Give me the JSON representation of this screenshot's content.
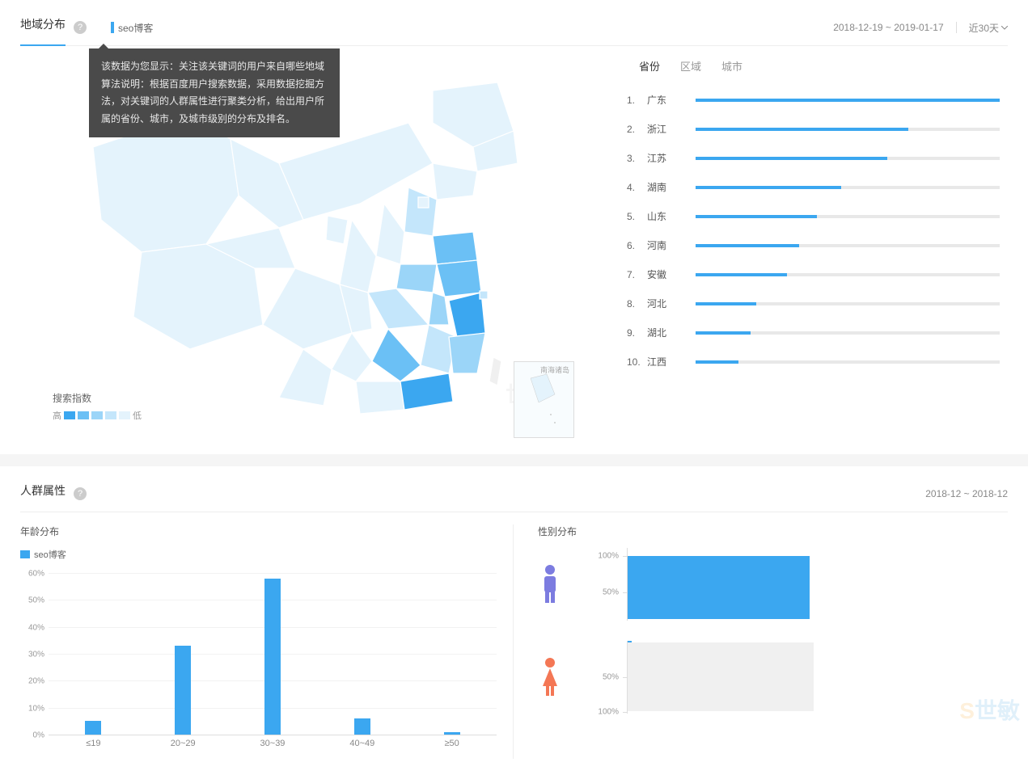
{
  "geo": {
    "title": "地域分布",
    "keyword": "seo博客",
    "date_range": "2018-12-19 ~ 2019-01-17",
    "period_label": "近30天",
    "tooltip_text": "该数据为您显示：关注该关键词的用户来自哪些地域算法说明：根据百度用户搜索数据，采用数据挖掘方法，对关键词的人群属性进行聚类分析，给出用户所属的省份、城市，及城市级别的分布及排名。",
    "legend": {
      "title": "搜索指数",
      "high": "高",
      "low": "低",
      "colors": [
        "#3ba7f0",
        "#6bc0f5",
        "#9bd5f8",
        "#c4e6fb",
        "#e4f3fc"
      ]
    },
    "inset_label": "南海诸岛",
    "rank_tabs": {
      "province": "省份",
      "region": "区域",
      "city": "城市",
      "active": "province"
    },
    "rankings": [
      {
        "n": 1,
        "name": "广东",
        "pct": 100
      },
      {
        "n": 2,
        "name": "浙江",
        "pct": 70
      },
      {
        "n": 3,
        "name": "江苏",
        "pct": 63
      },
      {
        "n": 4,
        "name": "湖南",
        "pct": 48
      },
      {
        "n": 5,
        "name": "山东",
        "pct": 40
      },
      {
        "n": 6,
        "name": "河南",
        "pct": 34
      },
      {
        "n": 7,
        "name": "安徽",
        "pct": 30
      },
      {
        "n": 8,
        "name": "河北",
        "pct": 20
      },
      {
        "n": 9,
        "name": "湖北",
        "pct": 18
      },
      {
        "n": 10,
        "name": "江西",
        "pct": 14
      }
    ]
  },
  "demo": {
    "title": "人群属性",
    "date_range": "2018-12 ~ 2018-12",
    "age": {
      "title": "年龄分布",
      "legend": "seo博客",
      "ymax": 60,
      "ystep": 10,
      "categories": [
        "≤19",
        "20~29",
        "30~39",
        "40~49",
        "≥50"
      ],
      "values": [
        5,
        33,
        58,
        6,
        1
      ],
      "bar_color": "#3ba7f0"
    },
    "gender": {
      "title": "性别分布",
      "male_pct": 98,
      "female_pct": 2,
      "ticks": [
        "100%",
        "50%"
      ],
      "bar_color": "#3ba7f0",
      "bg_color": "#e8e8e8",
      "male_color": "#7c7ce0",
      "female_color": "#f47755"
    }
  },
  "watermark": "世敏"
}
